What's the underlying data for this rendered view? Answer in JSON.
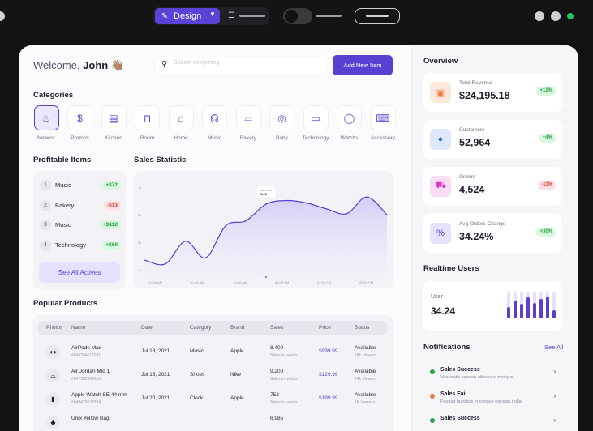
{
  "toolbar": {
    "mode_label": "Design",
    "design_icon": "design-icon",
    "layers_icon": "stack-icon",
    "colors": {
      "accent": "#5a42d6",
      "success": "#22c55e"
    }
  },
  "header": {
    "welcome_prefix": "Welcome,",
    "user_name": "John",
    "wave_emoji": "👋🏽",
    "search_placeholder": "Search everything",
    "add_button": "Add New Item"
  },
  "categories": {
    "title": "Categories",
    "items": [
      {
        "label": "Newest",
        "icon": "flame-icon",
        "glyph": "♨"
      },
      {
        "label": "Promos",
        "icon": "dollar-icon",
        "glyph": "$"
      },
      {
        "label": "Kitchen",
        "icon": "fridge-icon",
        "glyph": "▤"
      },
      {
        "label": "Room",
        "icon": "sofa-icon",
        "glyph": "⊓"
      },
      {
        "label": "Home",
        "icon": "house-icon",
        "glyph": "⌂"
      },
      {
        "label": "Music",
        "icon": "headphones-icon",
        "glyph": "☊"
      },
      {
        "label": "Bakery",
        "icon": "bread-icon",
        "glyph": "⌓"
      },
      {
        "label": "Baby",
        "icon": "pacifier-icon",
        "glyph": "◎"
      },
      {
        "label": "Technology",
        "icon": "laptop-icon",
        "glyph": "▭"
      },
      {
        "label": "Watchs",
        "icon": "watch-icon",
        "glyph": "◯"
      },
      {
        "label": "Accessory",
        "icon": "keyboard-icon",
        "glyph": "⌨"
      }
    ]
  },
  "profitable": {
    "title": "Profitable Items",
    "items": [
      {
        "rank": "1",
        "name": "Music",
        "change": "+$72",
        "positive": true
      },
      {
        "rank": "2",
        "name": "Bakery",
        "change": "-$13",
        "positive": false
      },
      {
        "rank": "3",
        "name": "Music",
        "change": "+$112",
        "positive": true
      },
      {
        "rank": "4",
        "name": "Technology",
        "change": "+$60",
        "positive": true
      }
    ],
    "see_all": "See All Actives"
  },
  "sales": {
    "title": "Sales Statistic"
  },
  "chart_data": {
    "type": "area",
    "title": "Sales Statistic",
    "x": [
      "10:00 AM",
      "10:30 AM",
      "11:00 AM",
      "11:30 AM",
      "12:00 AM",
      "12:30 AM",
      "01:00 PM",
      "01:30 PM",
      "02:00 PM",
      "02:30 PM",
      "03:00 PM",
      "03:30 PM",
      "04:00 PM"
    ],
    "x_tick_labels": [
      "10:00 AM",
      "11:00 AM",
      "12:00 AM",
      "01:00 PM",
      "02:00 PM",
      "03:00 PM"
    ],
    "y_tick_labels": [
      "7k",
      "5k",
      "3k",
      "1k"
    ],
    "ylim": [
      0,
      8000
    ],
    "values": [
      1200,
      900,
      2800,
      1400,
      4100,
      4500,
      5900,
      6200,
      6000,
      5500,
      5100,
      6500,
      5000
    ],
    "tooltip": {
      "label": "Sales Stats",
      "value": "7k16"
    },
    "grid": false,
    "legend": "none"
  },
  "popular": {
    "title": "Popular Products",
    "columns": [
      "Photos",
      "Name",
      "Date",
      "Category",
      "Brand",
      "Sales",
      "Price",
      "Status"
    ],
    "rows": [
      {
        "icon": "airpods-icon",
        "glyph": "◖◗",
        "name": "AirPods Max",
        "id": "#094294612941",
        "date": "Jul 13, 2021",
        "category": "Music",
        "brand": "Apple",
        "sales": "8.400",
        "sales_sub": "Sales in weeks",
        "price": "$999.99",
        "status": "Available",
        "viewers": "18k Viewers"
      },
      {
        "icon": "shoe-icon",
        "glyph": "⌓",
        "name": "Air Jordan Mid 1",
        "id": "#847382094610",
        "date": "Jul 15, 2021",
        "category": "Shoes",
        "brand": "Nike",
        "sales": "9.200",
        "sales_sub": "Sales in weeks",
        "price": "$129.99",
        "status": "Available",
        "viewers": "24k Viewers"
      },
      {
        "icon": "watch-icon",
        "glyph": "▮",
        "name": "Apple Watch SE 44 mm",
        "id": "#049479629384",
        "date": "Jul 20, 2021",
        "category": "Clock",
        "brand": "Apple",
        "sales": "752",
        "sales_sub": "Sales in weeks",
        "price": "$199.99",
        "status": "Available",
        "viewers": "1K Viewers"
      },
      {
        "icon": "bag-icon",
        "glyph": "◆",
        "name": "Unix Yellow Bag",
        "id": "",
        "date": "",
        "category": "",
        "brand": "",
        "sales": "6.985",
        "sales_sub": "",
        "price": "",
        "status": "",
        "viewers": ""
      }
    ]
  },
  "overview": {
    "title": "Overview",
    "stats": [
      {
        "label": "Total Revenue",
        "value": "$24,195.18",
        "change": "+12%",
        "positive": true,
        "icon": "gift-icon",
        "glyph": "▣",
        "color": "#f07a3a",
        "bg": "#fde8dc"
      },
      {
        "label": "Customers",
        "value": "52,964",
        "change": "+4%",
        "positive": true,
        "icon": "user-icon",
        "glyph": "●",
        "color": "#3b6fe0",
        "bg": "#dfe8fb"
      },
      {
        "label": "Orders",
        "value": "4,524",
        "change": "-11%",
        "positive": false,
        "icon": "cart-icon",
        "glyph": "⛟",
        "color": "#d63ac8",
        "bg": "#fadcf5"
      },
      {
        "label": "Avg Orders Change",
        "value": "34.24%",
        "change": "+30%",
        "positive": true,
        "icon": "percent-icon",
        "glyph": "%",
        "color": "#5a3fd3",
        "bg": "#e6e1ff"
      }
    ]
  },
  "realtime": {
    "title": "Realtime Users",
    "label": "User",
    "value": "34.24",
    "bars": [
      0.45,
      0.7,
      0.55,
      0.8,
      0.6,
      0.75,
      0.85,
      0.3
    ]
  },
  "notifications": {
    "title": "Notifications",
    "see_all": "See All",
    "items": [
      {
        "title": "Sales Success",
        "desc": "Venenatis aenean ultrices id tristique.",
        "color": "#22a64a"
      },
      {
        "title": "Sales Fail",
        "desc": "Feugiat faucibus in congue egestas nulla.",
        "color": "#f07a3a"
      },
      {
        "title": "Sales Success",
        "desc": "",
        "color": "#22a64a"
      }
    ]
  }
}
